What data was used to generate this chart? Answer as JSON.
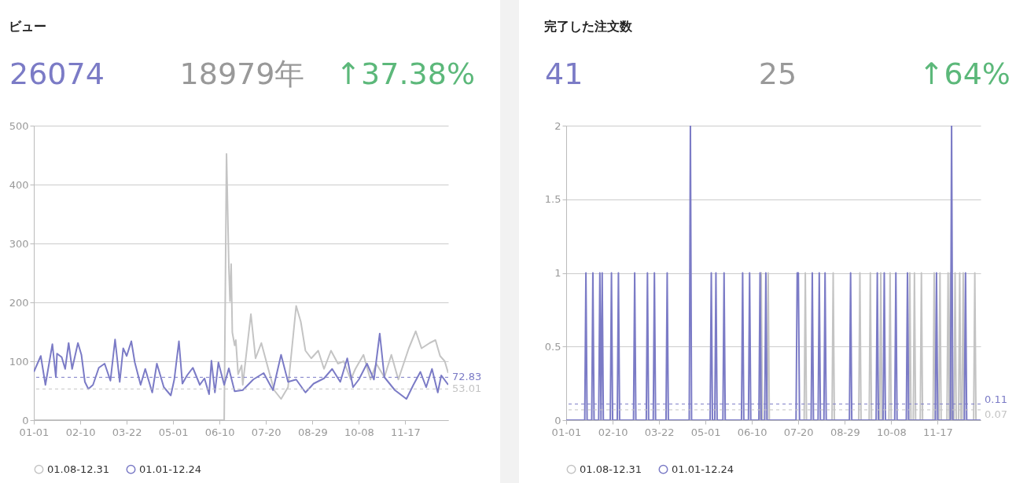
{
  "chart_data": [
    {
      "type": "line",
      "title": "ビュー",
      "annotations": [
        "26074",
        "18979年",
        "↑37.38%"
      ],
      "legend": "bottom",
      "grid": "y",
      "line_style": "solid",
      "xlim": [
        "--01-01",
        "--12-24"
      ],
      "xticks": [
        {
          "value": "--01-01",
          "label": "01-01"
        },
        {
          "value": "--02-10",
          "label": "02-10"
        },
        {
          "value": "--03-22",
          "label": "03-22"
        },
        {
          "value": "--05-01",
          "label": "05-01"
        },
        {
          "value": "--06-10",
          "label": "06-10"
        },
        {
          "value": "--07-20",
          "label": "07-20"
        },
        {
          "value": "--08-29",
          "label": "08-29"
        },
        {
          "value": "--10-08",
          "label": "10-08"
        },
        {
          "value": "--11-17",
          "label": "11-17"
        }
      ],
      "ylim": [
        0,
        500
      ],
      "yticks": [
        0,
        100,
        200,
        300,
        400,
        500
      ],
      "series": [
        {
          "name": "01.08-12.31",
          "color": "#c4c4c4",
          "x": [
            "--01-01",
            "--06-14",
            "--06-16",
            "--06-18",
            "--06-19",
            "--06-20",
            "--06-21",
            "--06-23",
            "--06-24",
            "--06-26",
            "--06-29",
            "--06-30",
            "--07-07",
            "--07-11",
            "--07-16",
            "--07-22",
            "--07-27",
            "--08-02",
            "--08-08",
            "--08-15",
            "--08-19",
            "--08-23",
            "--08-28",
            "--09-03",
            "--09-08",
            "--09-14",
            "--09-20",
            "--09-25",
            "--10-01",
            "--10-05",
            "--10-12",
            "--10-18",
            "--10-23",
            "--10-30",
            "--11-05",
            "--11-11",
            "--11-20",
            "--11-26",
            "--12-01",
            "--12-08",
            "--12-13",
            "--12-17",
            "--12-21",
            "--12-24"
          ],
          "values": [
            0,
            0,
            452,
            260,
            202,
            265,
            149,
            127,
            136,
            78,
            93,
            60,
            180,
            105,
            131,
            87,
            51,
            36,
            56,
            194,
            167,
            118,
            105,
            118,
            87,
            118,
            96,
            100,
            69,
            87,
            111,
            69,
            96,
            73,
            111,
            69,
            122,
            151,
            122,
            131,
            136,
            109,
            100,
            80
          ]
        },
        {
          "name": "01.01-12.24",
          "color": "#7b7bc6",
          "x": [
            "--01-01",
            "--01-07",
            "--01-11",
            "--01-17",
            "--01-20",
            "--01-21",
            "--01-25",
            "--01-28",
            "--01-31",
            "--02-03",
            "--02-08",
            "--02-11",
            "--02-14",
            "--02-17",
            "--02-21",
            "--02-26",
            "--03-03",
            "--03-08",
            "--03-12",
            "--03-16",
            "--03-19",
            "--03-22",
            "--03-26",
            "--03-29",
            "--04-03",
            "--04-07",
            "--04-13",
            "--04-17",
            "--04-23",
            "--04-29",
            "--05-02",
            "--05-06",
            "--05-09",
            "--05-13",
            "--05-18",
            "--05-24",
            "--05-28",
            "--06-01",
            "--06-03",
            "--06-06",
            "--06-09",
            "--06-14",
            "--06-18",
            "--06-23",
            "--06-30",
            "--07-09",
            "--07-18",
            "--07-26",
            "--08-02",
            "--08-08",
            "--08-15",
            "--08-23",
            "--08-30",
            "--09-08",
            "--09-15",
            "--09-22",
            "--09-28",
            "--10-03",
            "--10-08",
            "--10-15",
            "--10-21",
            "--10-26",
            "--10-30",
            "--11-08",
            "--11-18",
            "--11-24",
            "--11-30",
            "--12-05",
            "--12-10",
            "--12-15",
            "--12-18",
            "--12-24"
          ],
          "values": [
            82,
            109,
            60,
            129,
            73,
            113,
            107,
            87,
            131,
            87,
            131,
            111,
            65,
            53,
            60,
            89,
            96,
            67,
            137,
            65,
            122,
            109,
            134,
            98,
            60,
            87,
            47,
            96,
            56,
            42,
            69,
            134,
            62,
            76,
            89,
            60,
            71,
            44,
            101,
            47,
            98,
            60,
            88,
            49,
            51,
            69,
            80,
            51,
            111,
            65,
            69,
            47,
            62,
            71,
            87,
            65,
            105,
            56,
            69,
            96,
            69,
            147,
            73,
            51,
            36,
            60,
            82,
            56,
            87,
            47,
            76,
            60
          ]
        }
      ],
      "ref_lines": [
        {
          "axis": "y",
          "value": 72.83,
          "label": "72.83",
          "color": "#7b7bc6",
          "line_style": "dashed"
        },
        {
          "axis": "y",
          "value": 53.01,
          "label": "53.01",
          "color": "#c4c4c4",
          "line_style": "dashed"
        }
      ]
    },
    {
      "type": "line",
      "title": "完了した注文数",
      "annotations": [
        "41",
        "25",
        "↑64%"
      ],
      "legend": "bottom",
      "grid": "y",
      "line_style": "solid",
      "xlim": [
        "--01-01",
        "--12-24"
      ],
      "xticks": [
        {
          "value": "--01-01",
          "label": "01-01"
        },
        {
          "value": "--02-10",
          "label": "02-10"
        },
        {
          "value": "--03-22",
          "label": "03-22"
        },
        {
          "value": "--05-01",
          "label": "05-01"
        },
        {
          "value": "--06-10",
          "label": "06-10"
        },
        {
          "value": "--07-20",
          "label": "07-20"
        },
        {
          "value": "--08-29",
          "label": "08-29"
        },
        {
          "value": "--10-08",
          "label": "10-08"
        },
        {
          "value": "--11-17",
          "label": "11-17"
        }
      ],
      "ylim": [
        0,
        2
      ],
      "yticks": [
        0,
        0.5,
        1,
        1.5,
        2
      ],
      "series": [
        {
          "name": "01.08-12.31",
          "color": "#c4c4c4",
          "x": [
            "--01-01",
            "--06-17",
            "--06-18",
            "--06-19",
            "--06-23",
            "--06-24",
            "--06-25",
            "--07-25",
            "--07-26",
            "--07-27",
            "--08-18",
            "--08-19",
            "--08-20",
            "--09-10",
            "--09-11",
            "--09-12",
            "--09-19",
            "--09-20",
            "--09-21",
            "--09-28",
            "--09-29",
            "--09-30",
            "--10-06",
            "--10-07",
            "--10-08",
            "--10-23",
            "--10-24",
            "--10-25",
            "--10-27",
            "--10-28",
            "--10-29",
            "--11-02",
            "--11-03",
            "--11-04",
            "--11-13",
            "--11-14",
            "--11-15",
            "--11-18",
            "--11-19",
            "--11-20",
            "--11-25",
            "--11-26",
            "--11-27",
            "--11-28",
            "--11-29",
            "--12-01",
            "--12-02",
            "--12-03",
            "--12-05",
            "--12-06",
            "--12-07",
            "--12-08",
            "--12-09",
            "--12-10",
            "--12-18",
            "--12-19",
            "--12-20",
            "--12-24"
          ],
          "values": [
            0,
            0,
            1,
            0,
            0,
            1,
            0,
            0,
            1,
            0,
            0,
            1,
            0,
            0,
            1,
            0,
            0,
            1,
            0,
            0,
            1,
            0,
            0,
            1,
            0,
            0,
            1,
            0,
            0,
            1,
            0,
            0,
            1,
            0,
            0,
            1,
            0,
            0,
            1,
            0,
            0,
            1,
            0,
            1,
            0,
            0,
            1,
            0,
            0,
            1,
            0,
            0,
            1,
            0,
            0,
            1,
            0,
            0
          ]
        },
        {
          "name": "01.01-12.24",
          "color": "#7b7bc6",
          "x": [
            "--01-01",
            "--01-17",
            "--01-18",
            "--01-19",
            "--01-23",
            "--01-24",
            "--01-25",
            "--01-29",
            "--01-30",
            "--01-31",
            "--02-01",
            "--02-02",
            "--02-08",
            "--02-09",
            "--02-10",
            "--02-14",
            "--02-15",
            "--02-16",
            "--02-28",
            "--03-01",
            "--03-02",
            "--03-11",
            "--03-12",
            "--03-13",
            "--03-17",
            "--03-18",
            "--03-19",
            "--03-28",
            "--03-29",
            "--03-30",
            "--04-17",
            "--04-18",
            "--04-19",
            "--05-05",
            "--05-06",
            "--05-07",
            "--05-09",
            "--05-10",
            "--05-11",
            "--05-16",
            "--05-17",
            "--05-18",
            "--06-01",
            "--06-02",
            "--06-03",
            "--06-07",
            "--06-08",
            "--06-09",
            "--06-16",
            "--06-17",
            "--06-18",
            "--06-21",
            "--06-22",
            "--06-23",
            "--07-18",
            "--07-19",
            "--07-20",
            "--07-21",
            "--07-31",
            "--08-01",
            "--08-02",
            "--08-06",
            "--08-07",
            "--08-08",
            "--08-11",
            "--08-12",
            "--08-13",
            "--09-02",
            "--09-03",
            "--09-04",
            "--09-25",
            "--09-26",
            "--09-27",
            "--10-01",
            "--10-02",
            "--10-03",
            "--10-11",
            "--10-12",
            "--10-13",
            "--10-21",
            "--10-22",
            "--10-23",
            "--11-15",
            "--11-16",
            "--11-17",
            "--11-28",
            "--11-29",
            "--11-30",
            "--12-10",
            "--12-11",
            "--12-12",
            "--12-24"
          ],
          "values": [
            0,
            0,
            1,
            0,
            0,
            1,
            0,
            0,
            1,
            0,
            1,
            0,
            0,
            1,
            0,
            0,
            1,
            0,
            0,
            1,
            0,
            0,
            1,
            0,
            0,
            1,
            0,
            0,
            1,
            0,
            0,
            2,
            0,
            0,
            1,
            0,
            0,
            1,
            0,
            0,
            1,
            0,
            0,
            1,
            0,
            0,
            1,
            0,
            0,
            1,
            0,
            0,
            1,
            0,
            0,
            1,
            1,
            0,
            0,
            1,
            0,
            0,
            1,
            0,
            0,
            1,
            0,
            0,
            1,
            0,
            0,
            1,
            0,
            0,
            1,
            0,
            0,
            1,
            0,
            0,
            1,
            0,
            0,
            1,
            0,
            0,
            2,
            0,
            0,
            1,
            0,
            0
          ]
        }
      ],
      "ref_lines": [
        {
          "axis": "y",
          "value": 0.11,
          "label": "0.11",
          "color": "#7b7bc6",
          "line_style": "dashed"
        },
        {
          "axis": "y",
          "value": 0.07,
          "label": "0.07",
          "color": "#c4c4c4",
          "line_style": "dashed"
        }
      ]
    }
  ]
}
